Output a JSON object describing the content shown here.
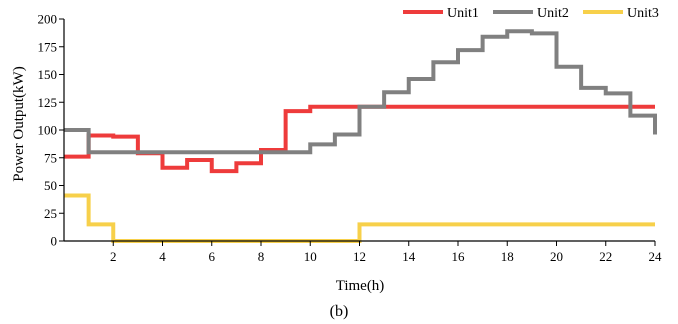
{
  "chart_data": {
    "type": "line",
    "step": true,
    "xlabel": "Time(h)",
    "ylabel": "Power Output(kW)",
    "caption": "(b)",
    "xlim": [
      0,
      24
    ],
    "ylim": [
      0,
      200
    ],
    "xticks": [
      2,
      4,
      6,
      8,
      10,
      12,
      14,
      16,
      18,
      20,
      22,
      24
    ],
    "yticks": [
      0,
      25,
      50,
      75,
      100,
      125,
      150,
      175,
      200
    ],
    "grid": false,
    "legend_position": "top-right",
    "x": [
      0,
      1,
      2,
      3,
      4,
      5,
      6,
      7,
      8,
      9,
      10,
      11,
      12,
      13,
      14,
      15,
      16,
      17,
      18,
      19,
      20,
      21,
      22,
      23,
      24
    ],
    "series": [
      {
        "name": "Unit1",
        "color": "#ee3b3b",
        "values": [
          76,
          95,
          94,
          79,
          66,
          73,
          63,
          70,
          82,
          117,
          121,
          121,
          121,
          121,
          121,
          121,
          121,
          121,
          121,
          121,
          121,
          121,
          121,
          121,
          121
        ]
      },
      {
        "name": "Unit2",
        "color": "#808080",
        "values": [
          100,
          80,
          80,
          80,
          80,
          80,
          80,
          80,
          80,
          80,
          87,
          96,
          121,
          134,
          146,
          161,
          172,
          184,
          189,
          187,
          157,
          138,
          133,
          113,
          96
        ]
      },
      {
        "name": "Unit3",
        "color": "#f7d04a",
        "values": [
          41,
          15,
          0,
          0,
          0,
          0,
          0,
          0,
          0,
          0,
          0,
          0,
          15,
          15,
          15,
          15,
          15,
          15,
          15,
          15,
          15,
          15,
          15,
          15,
          15
        ]
      }
    ]
  }
}
